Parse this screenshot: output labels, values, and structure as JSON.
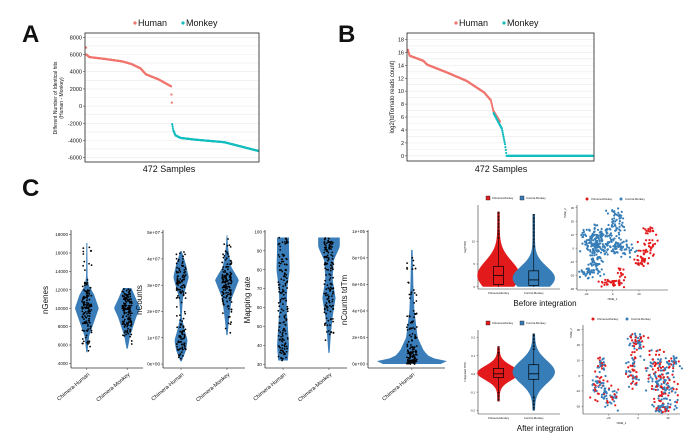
{
  "panel_letters": [
    "A",
    "B",
    "C"
  ],
  "colors": {
    "human": "#F0756E",
    "monkey": "#13BDBF",
    "violin": "#3A7DB8",
    "chimera": "#E31A1C",
    "control": "#377EB8"
  },
  "captions": {
    "before": "Before integration",
    "after": "After integration"
  },
  "chart_data": [
    {
      "id": "A",
      "type": "scatter",
      "legend": [
        "Human",
        "Monkey"
      ],
      "legend_placement": "top",
      "xlabel": "472 Samples",
      "ylabel": "Different Number of Identical hits (Human - Monkey)",
      "ylabel_lines": [
        "Different Number of Identical hits",
        "(Human - Monkey)"
      ],
      "ylim": [
        -6500,
        8500
      ],
      "yticks": [
        8000,
        6000,
        4000,
        2000,
        0,
        -2000,
        -4000,
        -6000
      ],
      "grid": true,
      "x_range": [
        1,
        472
      ],
      "series": [
        {
          "name": "Human",
          "points": [
            [
              1,
              6800
            ],
            [
              2,
              6000
            ],
            [
              10,
              5700
            ],
            [
              50,
              5500
            ],
            [
              100,
              5200
            ],
            [
              125,
              4900
            ],
            [
              150,
              4400
            ],
            [
              165,
              3700
            ],
            [
              200,
              3100
            ],
            [
              234,
              2300
            ],
            [
              236,
              400
            ]
          ]
        },
        {
          "name": "Monkey",
          "points": [
            [
              237,
              -2100
            ],
            [
              240,
              -2800
            ],
            [
              246,
              -3400
            ],
            [
              260,
              -3700
            ],
            [
              300,
              -3900
            ],
            [
              380,
              -4200
            ],
            [
              472,
              -5200
            ]
          ]
        }
      ]
    },
    {
      "id": "B",
      "type": "scatter",
      "legend": [
        "Human",
        "Monkey"
      ],
      "legend_placement": "top",
      "xlabel": "472 Samples",
      "ylabel": "log2(tdTomato reads count)",
      "ylim": [
        -0.8,
        19
      ],
      "yticks": [
        18,
        16,
        14,
        12,
        10,
        8,
        6,
        4,
        2,
        0
      ],
      "grid": true,
      "x_range": [
        1,
        472
      ],
      "series": [
        {
          "name": "Human",
          "points": [
            [
              1,
              16.4
            ],
            [
              5,
              15.5
            ],
            [
              40,
              14.7
            ],
            [
              50,
              14.1
            ],
            [
              100,
              12.9
            ],
            [
              150,
              11.6
            ],
            [
              195,
              9.8
            ],
            [
              212,
              8.6
            ],
            [
              218,
              7.0
            ],
            [
              235,
              5.3
            ]
          ]
        },
        {
          "name": "Monkey",
          "points": [
            [
              219,
              6.6
            ],
            [
              240,
              4.2
            ],
            [
              244,
              3.0
            ],
            [
              248,
              1.8
            ],
            [
              250,
              0.9
            ],
            [
              252,
              0
            ],
            [
              472,
              0
            ]
          ]
        }
      ]
    },
    {
      "id": "C1",
      "type": "violin",
      "ylabel": "nGenes",
      "categories": [
        "Chimera-Human",
        "Chimera-Monkey"
      ],
      "ylim": [
        3500,
        18500
      ],
      "yticks": [
        18000,
        16000,
        14000,
        12000,
        10000,
        8000,
        6000,
        4000
      ],
      "ytick_labels": [
        "18000",
        "16000",
        "14000",
        "12000",
        "10000",
        "8000",
        "6000",
        "4000"
      ],
      "distributions": [
        [
          [
            5200,
            0.04
          ],
          [
            7000,
            0.2
          ],
          [
            8500,
            0.6
          ],
          [
            10000,
            1
          ],
          [
            11500,
            0.6
          ],
          [
            12500,
            0.15
          ],
          [
            13500,
            0.06
          ],
          [
            17100,
            0.04
          ]
        ],
        [
          [
            5600,
            0.05
          ],
          [
            7000,
            0.25
          ],
          [
            9000,
            0.75
          ],
          [
            10000,
            1.1
          ],
          [
            11000,
            0.75
          ],
          [
            12200,
            0.35
          ]
        ]
      ]
    },
    {
      "id": "C2",
      "type": "violin",
      "ylabel": "nCounts",
      "categories": [
        "Chimera-Human",
        "Chimera-Monkey"
      ],
      "ylim": [
        -1500000,
        51000000
      ],
      "yticks": [
        50000000,
        40000000,
        30000000,
        20000000,
        10000000,
        0
      ],
      "ytick_labels": [
        "5e+07",
        "4e+07",
        "3e+07",
        "2e+07",
        "1e+07",
        "0e+00"
      ],
      "distributions": [
        [
          [
            1000000,
            0.05
          ],
          [
            5000000,
            0.4
          ],
          [
            9000000,
            0.55
          ],
          [
            13000000,
            0.3
          ],
          [
            18000000,
            0.06
          ],
          [
            25000000,
            0.15
          ],
          [
            33000000,
            0.65
          ],
          [
            38000000,
            0.4
          ],
          [
            43000000,
            0.05
          ]
        ],
        [
          [
            11000000,
            0.05
          ],
          [
            16000000,
            0.15
          ],
          [
            25000000,
            0.4
          ],
          [
            32000000,
            1
          ],
          [
            37000000,
            0.35
          ],
          [
            44000000,
            0.1
          ],
          [
            49000000,
            0.03
          ]
        ]
      ]
    },
    {
      "id": "C3",
      "type": "violin",
      "ylabel": "Mapping rate",
      "categories": [
        "Chimera-Human",
        "Chimera-Monkey"
      ],
      "ylim": [
        28,
        101
      ],
      "yticks": [
        100,
        90,
        80,
        70,
        60,
        50,
        40,
        30
      ],
      "ytick_labels": [
        "100",
        "90",
        "80",
        "70",
        "60",
        "50",
        "40",
        "30"
      ],
      "distributions": [
        [
          [
            32,
            0.4
          ],
          [
            40,
            0.5
          ],
          [
            50,
            0.4
          ],
          [
            60,
            0.3
          ],
          [
            70,
            0.35
          ],
          [
            80,
            0.55
          ],
          [
            90,
            0.5
          ],
          [
            97,
            0.5
          ]
        ],
        [
          [
            36,
            0.05
          ],
          [
            45,
            0.15
          ],
          [
            55,
            0.3
          ],
          [
            65,
            0.55
          ],
          [
            75,
            0.3
          ],
          [
            85,
            0.4
          ],
          [
            92,
            0.9
          ],
          [
            97,
            0.9
          ]
        ]
      ]
    },
    {
      "id": "C4",
      "type": "violin",
      "ylabel": "nCounts tdTm",
      "categories": [
        "Chimera-Human"
      ],
      "ylim": [
        -3000,
        101000
      ],
      "yticks": [
        100000,
        80000,
        60000,
        40000,
        20000,
        0
      ],
      "ytick_labels": [
        "1e+05",
        "8e+04",
        "6e+04",
        "4e+04",
        "2e+04",
        "0e+00"
      ],
      "distributions": [
        [
          [
            0,
            0.8
          ],
          [
            2000,
            1
          ],
          [
            5000,
            0.5
          ],
          [
            10000,
            0.33
          ],
          [
            20000,
            0.16
          ],
          [
            40000,
            0.07
          ],
          [
            60000,
            0.04
          ],
          [
            86000,
            0.02
          ]
        ]
      ]
    },
    {
      "id": "D1",
      "type": "violin-box",
      "caption": "Before integration",
      "legend": [
        "Chimera-Monkey",
        "Control-Monkey"
      ],
      "categories": [
        "Chimera-Monkey",
        "Control-Monkey"
      ],
      "ylabel": "log(TPM)",
      "ylim": [
        -0.5,
        18
      ],
      "yticks": [
        0,
        5,
        10
      ],
      "ytick_labels": [
        "0",
        "5",
        "10"
      ],
      "boxes": [
        {
          "min": 0,
          "q1": 0.5,
          "median": 2.5,
          "q3": 4.5,
          "whisker_high": 10.5,
          "max": 16.5
        },
        {
          "min": 0,
          "q1": 0.3,
          "median": 1.5,
          "q3": 3.5,
          "whisker_high": 8.5,
          "max": 16
        }
      ]
    },
    {
      "id": "D2",
      "type": "scatter",
      "caption": "Before integration",
      "legend": [
        "Chimera-Monkey",
        "Control-Monkey"
      ],
      "xlabel": "tSNE_1",
      "ylabel": "tSNE_2",
      "xlim": [
        -27,
        42
      ],
      "ylim": [
        -31,
        32
      ],
      "xticks": [
        -20,
        0,
        20
      ],
      "yticks": [
        30,
        20,
        10,
        0,
        -10,
        -20,
        -30
      ],
      "clusters": [
        {
          "group": 1,
          "center": [
            -12,
            6
          ],
          "spread": [
            6,
            5
          ],
          "n": 170
        },
        {
          "group": 1,
          "center": [
            3,
            18
          ],
          "spread": [
            3,
            6
          ],
          "n": 60
        },
        {
          "group": 1,
          "center": [
            5,
            0
          ],
          "spread": [
            6,
            3
          ],
          "n": 70
        },
        {
          "group": 1,
          "center": [
            -13,
            -10
          ],
          "spread": [
            3,
            5
          ],
          "n": 60
        },
        {
          "group": 1,
          "center": [
            -19,
            -18
          ],
          "spread": [
            3,
            2
          ],
          "n": 25
        },
        {
          "group": 0,
          "center": [
            27,
            13
          ],
          "spread": [
            3,
            1.5
          ],
          "n": 15
        },
        {
          "group": 0,
          "center": [
            28,
            0
          ],
          "spread": [
            4,
            4
          ],
          "n": 35
        },
        {
          "group": 0,
          "center": [
            22,
            -9
          ],
          "spread": [
            3,
            2
          ],
          "n": 25
        },
        {
          "group": 0,
          "center": [
            0,
            -25
          ],
          "spread": [
            5,
            1.5
          ],
          "n": 40
        },
        {
          "group": 0,
          "center": [
            7,
            -17
          ],
          "spread": [
            1.5,
            2
          ],
          "n": 12
        }
      ]
    },
    {
      "id": "D3",
      "type": "violin-box",
      "caption": "After integration",
      "legend": [
        "Chimera-Monkey",
        "Control-Monkey"
      ],
      "categories": [
        "Chimera-Monkey",
        "Control-Monkey"
      ],
      "ylabel": "Integrated TPM",
      "ylim": [
        -0.22,
        0.24
      ],
      "yticks": [
        0.2,
        0.1,
        0.0,
        -0.1,
        -0.2
      ],
      "ytick_labels": [
        "0.2",
        "0.1",
        "0.0",
        "-0.1",
        "-0.2"
      ],
      "boxes": [
        {
          "min": -0.15,
          "whisker_low": -0.1,
          "q1": -0.02,
          "median": 0.0,
          "q3": 0.03,
          "whisker_high": 0.1,
          "max": 0.15
        },
        {
          "min": -0.2,
          "whisker_low": -0.12,
          "q1": -0.03,
          "median": 0.0,
          "q3": 0.05,
          "whisker_high": 0.13,
          "max": 0.22
        }
      ]
    },
    {
      "id": "D4",
      "type": "scatter",
      "caption": "After integration",
      "legend": [
        "Chimera-Monkey",
        "Control-Monkey"
      ],
      "xlabel": "tSNE_1",
      "ylabel": "tSNE_2",
      "xlim": [
        -37,
        28
      ],
      "ylim": [
        -25,
        33
      ],
      "xticks": [
        -20,
        0,
        20
      ],
      "yticks": [
        30,
        20,
        10,
        0,
        -10,
        -20
      ],
      "clusters": [
        {
          "group": 2,
          "center": [
            -24,
            8
          ],
          "spread": [
            1.5,
            2
          ],
          "n": 25
        },
        {
          "group": 2,
          "center": [
            -27,
            -6
          ],
          "spread": [
            3,
            5
          ],
          "n": 50
        },
        {
          "group": 2,
          "center": [
            -19,
            -14
          ],
          "spread": [
            3,
            4
          ],
          "n": 45
        },
        {
          "group": 2,
          "center": [
            0,
            23
          ],
          "spread": [
            3,
            3
          ],
          "n": 45
        },
        {
          "group": 2,
          "center": [
            -4,
            2
          ],
          "spread": [
            2,
            7
          ],
          "n": 50
        },
        {
          "group": 2,
          "center": [
            14,
            3
          ],
          "spread": [
            5,
            6
          ],
          "n": 110
        },
        {
          "group": 2,
          "center": [
            18,
            -10
          ],
          "spread": [
            4,
            6
          ],
          "n": 80
        },
        {
          "group": 2,
          "center": [
            24,
            8
          ],
          "spread": [
            2,
            2
          ],
          "n": 25
        },
        {
          "group": 2,
          "center": [
            16,
            -21
          ],
          "spread": [
            3,
            2
          ],
          "n": 35
        }
      ]
    }
  ]
}
